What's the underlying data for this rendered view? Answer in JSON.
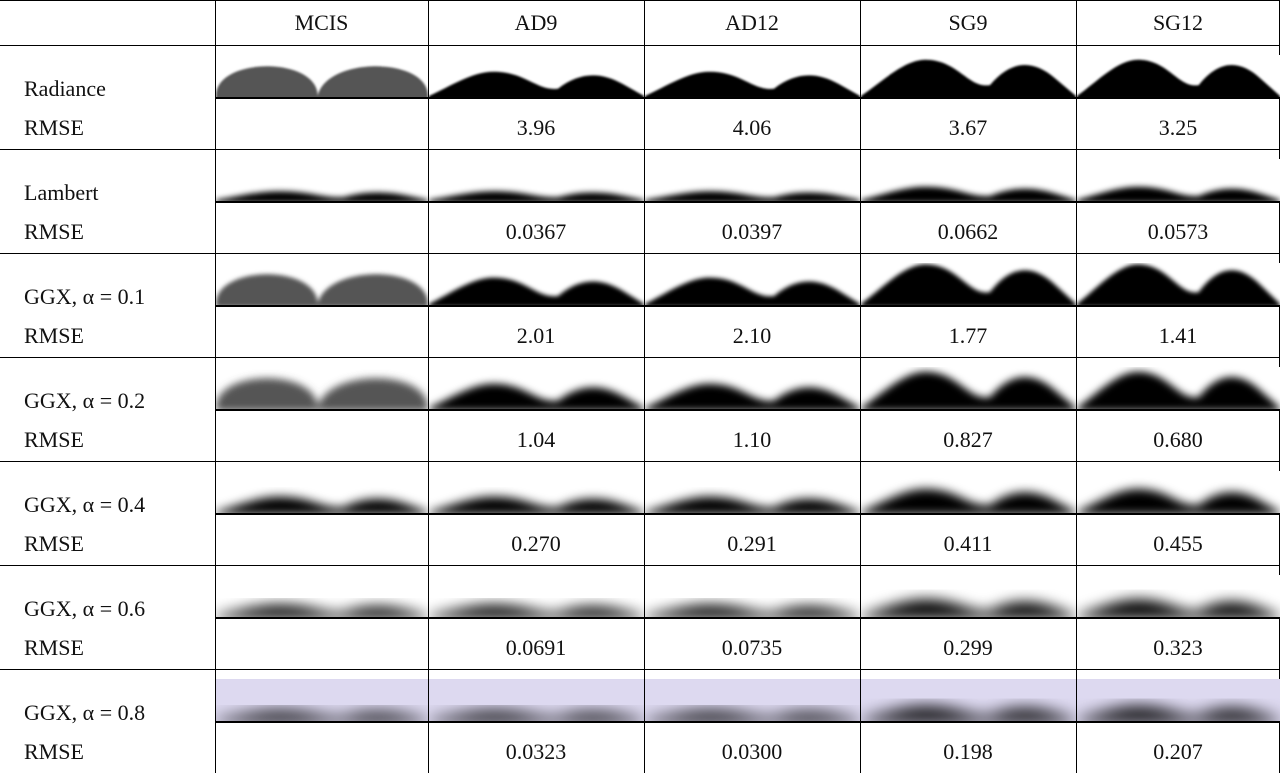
{
  "header": {
    "columns": [
      "MCIS",
      "AD9",
      "AD12",
      "SG9",
      "SG12"
    ]
  },
  "rows": [
    {
      "label": "Radiance",
      "metric": "RMSE",
      "values": [
        "3.96",
        "4.06",
        "3.67",
        "3.25"
      ]
    },
    {
      "label": "Lambert",
      "metric": "RMSE",
      "values": [
        "0.0367",
        "0.0397",
        "0.0662",
        "0.0573"
      ]
    },
    {
      "label": "GGX, α = 0.1",
      "metric": "RMSE",
      "values": [
        "2.01",
        "2.10",
        "1.77",
        "1.41"
      ]
    },
    {
      "label": "GGX, α = 0.2",
      "metric": "RMSE",
      "values": [
        "1.04",
        "1.10",
        "0.827",
        "0.680"
      ]
    },
    {
      "label": "GGX, α = 0.4",
      "metric": "RMSE",
      "values": [
        "0.270",
        "0.291",
        "0.411",
        "0.455"
      ]
    },
    {
      "label": "GGX, α = 0.6",
      "metric": "RMSE",
      "values": [
        "0.0691",
        "0.0735",
        "0.299",
        "0.323"
      ]
    },
    {
      "label": "GGX, α = 0.8",
      "metric": "RMSE",
      "values": [
        "0.0323",
        "0.0300",
        "0.198",
        "0.207"
      ]
    }
  ]
}
